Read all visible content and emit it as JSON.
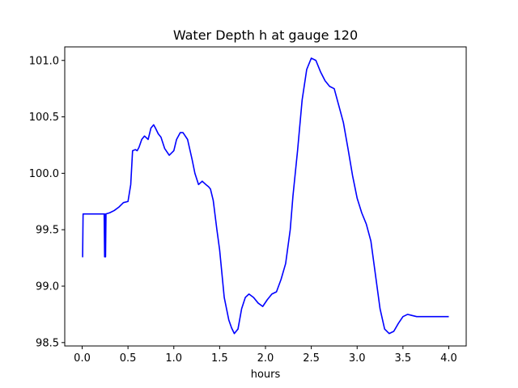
{
  "chart_data": {
    "type": "line",
    "title": "Water Depth h at gauge 120",
    "xlabel": "hours",
    "ylabel": "",
    "xlim": [
      -0.19,
      4.19
    ],
    "ylim": [
      98.47,
      101.12
    ],
    "grid": false,
    "line_color": "#0000ff",
    "xticks": [
      0.0,
      0.5,
      1.0,
      1.5,
      2.0,
      2.5,
      3.0,
      3.5,
      4.0
    ],
    "xtick_labels": [
      "0.0",
      "0.5",
      "1.0",
      "1.5",
      "2.0",
      "2.5",
      "3.0",
      "3.5",
      "4.0"
    ],
    "yticks": [
      98.5,
      99.0,
      99.5,
      100.0,
      100.5,
      101.0
    ],
    "ytick_labels": [
      "98.5",
      "99.0",
      "99.5",
      "100.0",
      "100.5",
      "101.0"
    ],
    "series": [
      {
        "name": "",
        "x": [
          0.0,
          0.005,
          0.01,
          0.1,
          0.2,
          0.24,
          0.245,
          0.25,
          0.255,
          0.26,
          0.3,
          0.35,
          0.4,
          0.45,
          0.5,
          0.53,
          0.55,
          0.58,
          0.6,
          0.62,
          0.65,
          0.68,
          0.72,
          0.75,
          0.78,
          0.8,
          0.83,
          0.86,
          0.9,
          0.95,
          1.0,
          1.03,
          1.07,
          1.1,
          1.15,
          1.2,
          1.23,
          1.27,
          1.31,
          1.35,
          1.38,
          1.4,
          1.43,
          1.47,
          1.5,
          1.55,
          1.6,
          1.63,
          1.66,
          1.7,
          1.74,
          1.78,
          1.82,
          1.87,
          1.92,
          1.97,
          2.02,
          2.07,
          2.12,
          2.17,
          2.22,
          2.27,
          2.3,
          2.35,
          2.4,
          2.45,
          2.5,
          2.55,
          2.6,
          2.65,
          2.7,
          2.75,
          2.8,
          2.85,
          2.9,
          2.95,
          3.0,
          3.05,
          3.1,
          3.15,
          3.2,
          3.25,
          3.3,
          3.35,
          3.4,
          3.45,
          3.5,
          3.55,
          3.6,
          3.65,
          3.7,
          3.75,
          3.8,
          3.85,
          3.9,
          3.95,
          4.0
        ],
        "y": [
          99.26,
          99.26,
          99.64,
          99.64,
          99.64,
          99.64,
          99.26,
          99.64,
          99.26,
          99.64,
          99.65,
          99.67,
          99.7,
          99.74,
          99.75,
          99.9,
          100.2,
          100.21,
          100.2,
          100.23,
          100.3,
          100.33,
          100.3,
          100.4,
          100.43,
          100.4,
          100.35,
          100.32,
          100.22,
          100.16,
          100.2,
          100.3,
          100.36,
          100.36,
          100.3,
          100.12,
          100.0,
          99.9,
          99.93,
          99.9,
          99.88,
          99.86,
          99.76,
          99.5,
          99.32,
          98.9,
          98.7,
          98.63,
          98.58,
          98.62,
          98.8,
          98.9,
          98.93,
          98.9,
          98.85,
          98.82,
          98.88,
          98.93,
          98.95,
          99.06,
          99.2,
          99.5,
          99.8,
          100.2,
          100.65,
          100.92,
          101.02,
          101.0,
          100.9,
          100.82,
          100.77,
          100.75,
          100.6,
          100.45,
          100.22,
          99.98,
          99.78,
          99.65,
          99.55,
          99.4,
          99.1,
          98.8,
          98.62,
          98.58,
          98.6,
          98.67,
          98.73,
          98.75,
          98.74,
          98.73,
          98.73,
          98.73,
          98.73,
          98.73,
          98.73,
          98.73,
          98.73
        ]
      }
    ]
  }
}
